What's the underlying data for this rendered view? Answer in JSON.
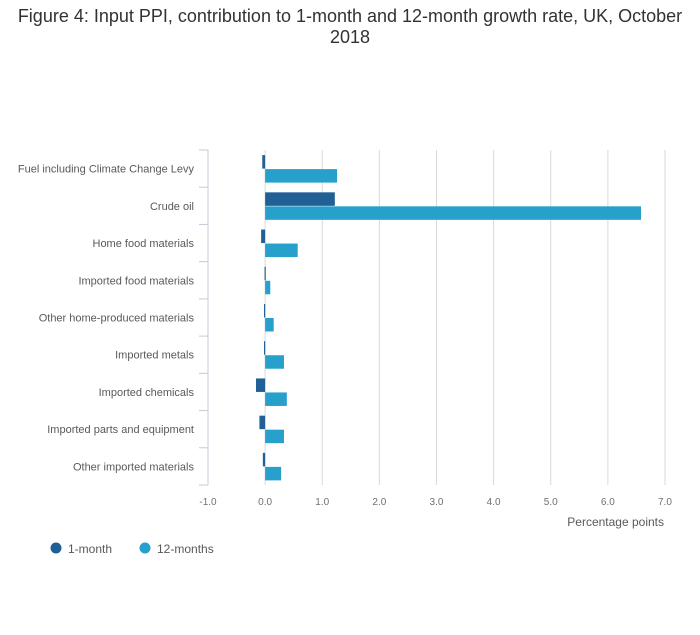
{
  "chart_data": {
    "type": "bar",
    "orientation": "horizontal",
    "title": "Figure 4: Input PPI, contribution to 1-month and 12-month growth rate, UK, October 2018",
    "categories": [
      "Fuel including Climate Change Levy",
      "Crude oil",
      "Home food materials",
      "Imported food materials",
      "Other home-produced materials",
      "Imported metals",
      "Imported chemicals",
      "Imported parts and equipment",
      "Other imported materials"
    ],
    "series": [
      {
        "name": "1-month",
        "color": "#206095",
        "values": [
          -0.05,
          1.22,
          -0.07,
          -0.01,
          -0.02,
          -0.02,
          -0.16,
          -0.1,
          -0.04
        ]
      },
      {
        "name": "12-months",
        "color": "#27A0CC",
        "values": [
          1.26,
          6.58,
          0.57,
          0.09,
          0.15,
          0.33,
          0.38,
          0.33,
          0.28
        ]
      }
    ],
    "xlabel": "Percentage points",
    "ylabel": "",
    "xlim": [
      -1.0,
      7.0
    ],
    "xticks": [
      "-1.0",
      "0.0",
      "1.0",
      "2.0",
      "3.0",
      "4.0",
      "5.0",
      "6.0",
      "7.0"
    ],
    "grid": true,
    "legend": "bottom-left"
  }
}
